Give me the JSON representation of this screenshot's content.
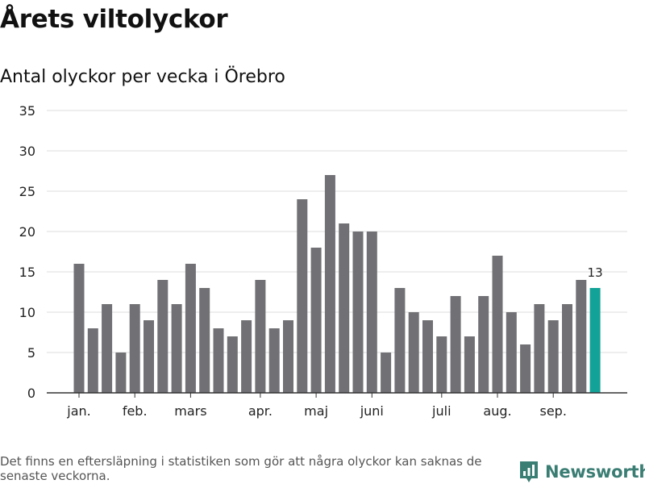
{
  "chart_data": {
    "type": "bar",
    "title": "Årets viltolyckor",
    "subtitle": "Antal olyckor per vecka i Örebro",
    "xlabel": "",
    "ylabel": "",
    "ylim": [
      0,
      35
    ],
    "yticks": [
      0,
      5,
      10,
      15,
      20,
      25,
      30,
      35
    ],
    "grid": true,
    "values": [
      16,
      8,
      11,
      5,
      11,
      9,
      14,
      11,
      16,
      13,
      8,
      7,
      9,
      14,
      8,
      9,
      24,
      18,
      27,
      21,
      20,
      20,
      5,
      13,
      10,
      9,
      7,
      12,
      7,
      12,
      17,
      10,
      6,
      11,
      9,
      11,
      14,
      13
    ],
    "month_labels": [
      {
        "label": "jan.",
        "bar_index": 0
      },
      {
        "label": "feb.",
        "bar_index": 4
      },
      {
        "label": "mars",
        "bar_index": 8
      },
      {
        "label": "apr.",
        "bar_index": 13
      },
      {
        "label": "maj",
        "bar_index": 17
      },
      {
        "label": "juni",
        "bar_index": 21
      },
      {
        "label": "juli",
        "bar_index": 26
      },
      {
        "label": "aug.",
        "bar_index": 30
      },
      {
        "label": "sep.",
        "bar_index": 34
      }
    ],
    "highlight_index": 37,
    "highlight_label": "13",
    "colors": {
      "bar": "#717074",
      "highlight": "#13a297",
      "grid": "#dddddd",
      "axis": "#333333"
    }
  },
  "footnote": "Det finns en eftersläpning i statistiken som gör att några olyckor kan saknas de senaste veckorna.",
  "brand": {
    "name": "Newsworthy",
    "color": "#3a7d73",
    "icon": "newsworthy-logo-icon"
  }
}
